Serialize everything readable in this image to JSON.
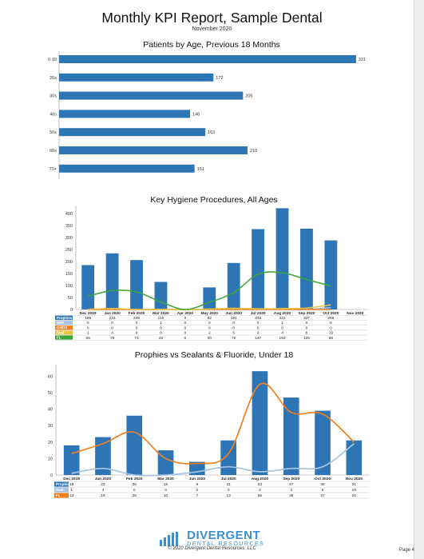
{
  "report": {
    "title": "Monthly KPI Report, Sample Dental",
    "subtitle": "November 2020"
  },
  "footer": {
    "logo_main": "DIVERGENT",
    "logo_sub": "DENTAL RESOURCES",
    "copyright": "© 2020 Divergent Dental Resources, LLC",
    "page": "Page 4"
  },
  "colors": {
    "blue": "#2e75b6",
    "green": "#3aa53a",
    "orange": "#f07f1e",
    "lightblue": "#a9c4e0"
  },
  "chart_data": [
    {
      "type": "bar",
      "orientation": "horizontal",
      "title": "Patients by Age, Previous 18 Months",
      "categories": [
        "0-19",
        "20s",
        "30s",
        "40s",
        "50s",
        "60s",
        "70+"
      ],
      "values": [
        331,
        172,
        205,
        146,
        163,
        210,
        151
      ],
      "xlim": [
        0,
        340
      ],
      "xticks": [
        0,
        50,
        100,
        150,
        200,
        250,
        300
      ],
      "grid": false
    },
    {
      "type": "bar",
      "title": "Key Hygiene Procedures, All Ages",
      "categories": [
        "Dec 2019",
        "Jan 2020",
        "Feb 2020",
        "Mar 2020",
        "Apr 2020",
        "May 2020",
        "Jun 2020",
        "Jul 2020",
        "Aug 2020",
        "Sep 2020",
        "Oct 2020",
        "Nov 2020"
      ],
      "ylim": [
        0,
        420
      ],
      "yticks": [
        0,
        50,
        100,
        150,
        200,
        250,
        300,
        350,
        400
      ],
      "series": [
        {
          "name": "Prophies",
          "kind": "bar",
          "color": "#2e75b6",
          "values": [
            185,
            234,
            206,
            115,
            0,
            92,
            194,
            335,
            422,
            337,
            288,
            null
          ],
          "table": [
            "185",
            "234",
            "206",
            "115",
            "0",
            "92",
            "194",
            "335",
            "422",
            "337",
            "288",
            ""
          ]
        },
        {
          "name": "SRP",
          "kind": "line",
          "color": "#a9c4e0",
          "values": [
            0,
            0,
            0,
            1,
            0,
            0,
            0,
            0,
            1,
            0,
            8,
            null
          ],
          "table": [
            "0",
            "0",
            "0",
            "1",
            "0",
            "0",
            "0",
            "0",
            "1",
            "0",
            "8",
            ""
          ]
        },
        {
          "name": "D4910",
          "kind": "line",
          "color": "#f07f1e",
          "values": [
            0,
            0,
            0,
            0,
            0,
            0,
            0,
            0,
            0,
            0,
            0,
            null
          ],
          "table": [
            "0",
            "0",
            "0",
            "0",
            "0",
            "0",
            "0",
            "0",
            "0",
            "0",
            "0",
            ""
          ]
        },
        {
          "name": "Seal",
          "kind": "line",
          "color": "#e8c34a",
          "values": [
            1,
            4,
            0,
            0,
            0,
            2,
            5,
            3,
            4,
            6,
            19,
            null
          ],
          "table": [
            "1",
            "4",
            "0",
            "0",
            "0",
            "2",
            "5",
            "3",
            "4",
            "6",
            "19",
            ""
          ]
        },
        {
          "name": "FL",
          "kind": "line",
          "color": "#3aa53a",
          "values": [
            55,
            79,
            73,
            32,
            0,
            30,
            70,
            147,
            153,
            125,
            98,
            null
          ],
          "table": [
            "55",
            "79",
            "73",
            "32",
            "0",
            "30",
            "70",
            "147",
            "153",
            "125",
            "98",
            ""
          ]
        }
      ],
      "legend": "table-below"
    },
    {
      "type": "bar",
      "title": "Prophies vs Sealants & Fluoride, Under 18",
      "categories": [
        "Dec 2019",
        "Jan 2020",
        "Feb 2020",
        "Mar 2020",
        "Jun 2020",
        "Jul 2020",
        "Aug 2020",
        "Sep 2020",
        "Oct 2020",
        "Nov 2020"
      ],
      "ylim": [
        0,
        65
      ],
      "yticks": [
        0,
        10,
        20,
        30,
        40,
        50,
        60
      ],
      "series": [
        {
          "name": "Prophies",
          "kind": "bar",
          "color": "#2e75b6",
          "values": [
            18,
            23,
            36,
            15,
            8,
            21,
            63,
            47,
            39,
            21
          ]
        },
        {
          "name": "Seal",
          "kind": "line",
          "color": "#a9c4e0",
          "values": [
            1,
            4,
            0,
            0,
            2,
            5,
            2,
            4,
            5,
            19
          ]
        },
        {
          "name": "FL",
          "kind": "line",
          "color": "#f07f1e",
          "values": [
            13,
            19,
            26,
            10,
            7,
            13,
            55,
            38,
            37,
            20
          ]
        }
      ],
      "legend": "table-below"
    }
  ]
}
